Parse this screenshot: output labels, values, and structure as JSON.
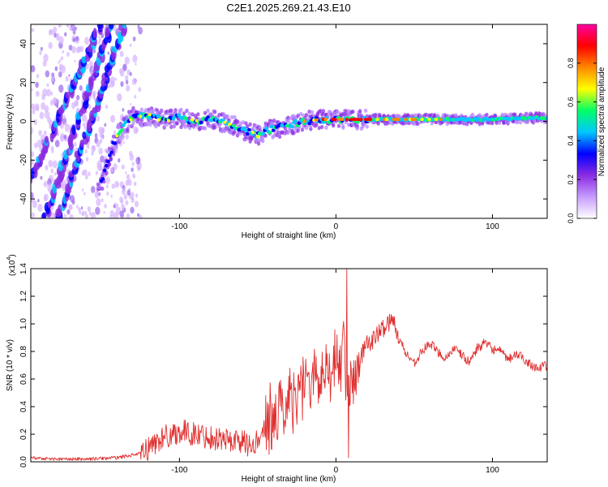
{
  "title": "C2E1.2025.269.21.43.E10",
  "chart_data": [
    {
      "type": "heatmap",
      "name": "spectrogram",
      "xlabel": "Height of straight line (km)",
      "ylabel": "Frequency (Hz)",
      "xlim": [
        -195,
        135
      ],
      "ylim": [
        -50,
        50
      ],
      "x_ticks": [
        -100,
        0,
        100
      ],
      "y_ticks": [
        -40,
        -20,
        0,
        20,
        40
      ],
      "x_tick_labels": [
        "-100",
        "0",
        "100"
      ],
      "y_tick_labels": [
        "-40",
        "-20",
        "0",
        "20",
        "40"
      ],
      "ridge": {
        "x": [
          -150,
          -145,
          -140,
          -135,
          -130,
          -120,
          -110,
          -100,
          -90,
          -80,
          -70,
          -60,
          -50,
          -45,
          -40,
          -30,
          -20,
          -10,
          0,
          10,
          20,
          40,
          60,
          80,
          100,
          120,
          135
        ],
        "y": [
          -32,
          -18,
          -8,
          -2,
          2,
          3,
          1,
          2,
          0,
          1,
          -1,
          -4,
          -7,
          -5,
          -4,
          -2,
          0,
          1,
          1,
          1,
          1,
          1,
          1,
          1,
          1,
          1.5,
          2
        ]
      },
      "streaks": [
        {
          "x": [
            -195,
            -150
          ],
          "y": [
            -30,
            50
          ]
        },
        {
          "x": [
            -178,
            -135
          ],
          "y": [
            -50,
            50
          ]
        },
        {
          "x": [
            -186,
            -143
          ],
          "y": [
            -50,
            50
          ]
        }
      ],
      "colorbar": {
        "label": "Normalized spectral amplitude",
        "ticks": [
          0.0,
          0.2,
          0.4,
          0.6,
          0.8
        ],
        "tick_labels": [
          "0.0",
          "0.2",
          "0.4",
          "0.6",
          "0.8"
        ],
        "range": [
          0,
          1
        ],
        "colors": [
          "#ffffff",
          "#c79bff",
          "#8a2be2",
          "#0000ff",
          "#00c8ff",
          "#00ff66",
          "#ffff00",
          "#ff8800",
          "#ff0000",
          "#ff00a0"
        ]
      }
    },
    {
      "type": "line",
      "name": "snr",
      "xlabel": "Height of straight line (km)",
      "ylabel": "SNR (10 * v/v)",
      "y_scale_label": "(x10",
      "y_scale_exp": "4",
      "xlim": [
        -195,
        135
      ],
      "ylim": [
        0,
        1.4
      ],
      "x_ticks": [
        -100,
        0,
        100
      ],
      "y_ticks": [
        0.0,
        0.2,
        0.4,
        0.6,
        0.8,
        1.0,
        1.2,
        1.4
      ],
      "x_tick_labels": [
        "-100",
        "0",
        "100"
      ],
      "y_tick_labels": [
        "0.0",
        "0.2",
        "0.4",
        "0.6",
        "0.8",
        "1.0",
        "1.2",
        "1.4"
      ],
      "line_color": "#e03030",
      "series": [
        {
          "name": "SNR",
          "x": [
            -195,
            -180,
            -160,
            -140,
            -130,
            -125,
            -120,
            -115,
            -110,
            -100,
            -90,
            -80,
            -70,
            -60,
            -55,
            -50,
            -45,
            -40,
            -35,
            -30,
            -25,
            -20,
            -15,
            -10,
            -5,
            0,
            3,
            5,
            7,
            8,
            10,
            12,
            15,
            20,
            25,
            30,
            35,
            38,
            40,
            45,
            50,
            55,
            60,
            65,
            70,
            75,
            80,
            85,
            90,
            95,
            100,
            105,
            110,
            115,
            120,
            125,
            130,
            135
          ],
          "y": [
            0.03,
            0.02,
            0.02,
            0.03,
            0.05,
            0.06,
            0.1,
            0.14,
            0.18,
            0.22,
            0.2,
            0.18,
            0.16,
            0.15,
            0.12,
            0.15,
            0.25,
            0.32,
            0.38,
            0.45,
            0.55,
            0.6,
            0.58,
            0.62,
            0.7,
            0.72,
            0.7,
            0.9,
            0.6,
            0.55,
            0.62,
            0.58,
            0.75,
            0.85,
            0.9,
            0.97,
            1.02,
            1.0,
            0.9,
            0.78,
            0.72,
            0.8,
            0.86,
            0.8,
            0.75,
            0.82,
            0.78,
            0.72,
            0.82,
            0.86,
            0.82,
            0.8,
            0.74,
            0.78,
            0.75,
            0.7,
            0.68,
            0.7
          ]
        }
      ],
      "spikes": [
        {
          "x": 7,
          "y": 1.4
        },
        {
          "x": 8,
          "y": 0.03
        }
      ]
    }
  ]
}
